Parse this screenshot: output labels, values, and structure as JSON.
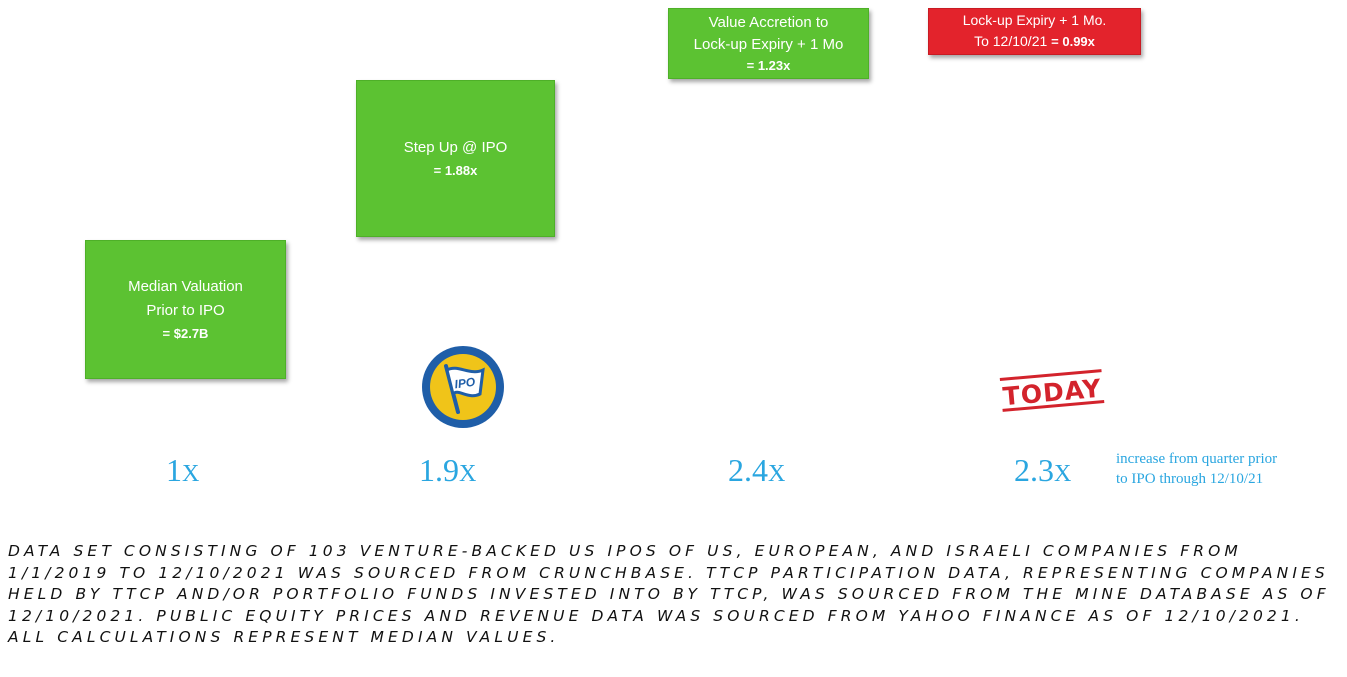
{
  "chart_data": {
    "type": "step",
    "steps": [
      {
        "label_lines": [
          "Median Valuation",
          "Prior to IPO"
        ],
        "value": "= $2.7B",
        "multiple": "1",
        "color": "#5cc232"
      },
      {
        "label_lines": [
          "Step Up @ IPO"
        ],
        "value": "= 1.88x",
        "multiple": "1.9",
        "color": "#5cc232"
      },
      {
        "label_lines": [
          "Value Accretion to",
          "Lock-up Expiry + 1 Mo"
        ],
        "value": "= 1.23x",
        "multiple": "2.4",
        "color": "#5cc232"
      },
      {
        "label_lines": [
          "Lock-up Expiry + 1 Mo."
        ],
        "label_prefix": "To 12/10/21 ",
        "value": "= 0.99x",
        "multiple": "2.3",
        "color": "#e3232c"
      }
    ],
    "multiple_suffix": "X",
    "increase_note_lines": [
      "increase from quarter prior",
      "to IPO through 12/10/21"
    ],
    "ipo_flag_text": "IPO",
    "today_stamp_text": "TODAY",
    "footnote": "Data set consisting of 103 venture-backed US IPOs of US, European, and Israeli companies from 1/1/2019 to 12/10/2021 was sourced from Crunchbase. TTCP participation data, representing companies held by TTCP and/or portfolio funds invested into by TTCP, was sourced from the Mine database as of 12/10/2021. Public equity prices and revenue data was sourced from Yahoo Finance as of 12/10/2021. All calculations represent median values.",
    "colors": {
      "green": "#5cc232",
      "red": "#e3232c",
      "blue": "#2aa6e0",
      "flag_blue": "#1f5ea8",
      "flag_gold": "#f0c419",
      "stamp_red": "#d3232c"
    }
  }
}
